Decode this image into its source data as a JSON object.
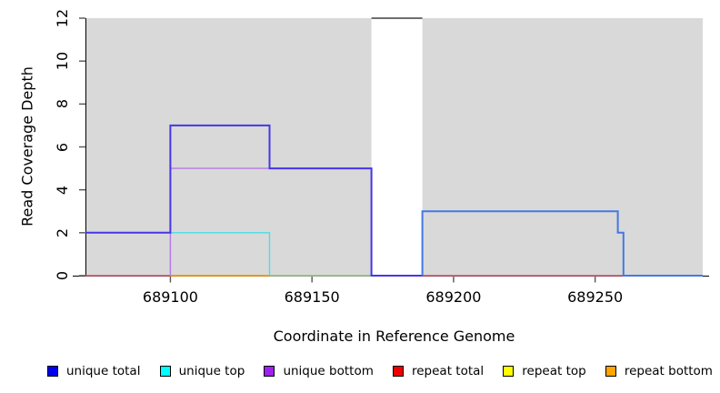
{
  "chart_data": {
    "type": "line",
    "subtype": "step-coverage",
    "title": "",
    "xlabel": "Coordinate in Reference Genome",
    "ylabel": "Read Coverage Depth",
    "xlim": [
      689070,
      689288
    ],
    "ylim": [
      0,
      12
    ],
    "xticks": [
      "689100",
      "689150",
      "689200",
      "689250"
    ],
    "xtick_values": [
      689100,
      689150,
      689200,
      689250
    ],
    "yticks": [
      "0",
      "2",
      "4",
      "6",
      "8",
      "10",
      "12"
    ],
    "ytick_values": [
      0,
      2,
      4,
      6,
      8,
      10,
      12
    ],
    "grid": "off",
    "plot_bg": "#d9d9d9",
    "gap_region": {
      "x0": 689171,
      "x1": 689189,
      "color": "#ffffff"
    },
    "series": [
      {
        "name": "repeat total",
        "color": "#d4576e",
        "lw": 1.4,
        "points": [
          [
            689070,
            0
          ],
          [
            689288,
            0
          ]
        ]
      },
      {
        "name": "repeat top overlap",
        "color": "#8fd694",
        "lw": 1.4,
        "points": [
          [
            689135,
            0
          ],
          [
            689171,
            0
          ]
        ]
      },
      {
        "name": "repeat bottom",
        "color": "#ffa500",
        "lw": 1.6,
        "points": [
          [
            689100,
            0
          ],
          [
            689135,
            0
          ]
        ]
      },
      {
        "name": "unique top",
        "color": "#45dfe8",
        "lw": 1.4,
        "points": [
          [
            689100,
            0
          ],
          [
            689100,
            2
          ],
          [
            689135,
            2
          ],
          [
            689135,
            0
          ]
        ]
      },
      {
        "name": "unique bottom",
        "color": "#b57be8",
        "lw": 1.4,
        "points": [
          [
            689100,
            0
          ],
          [
            689100,
            5
          ],
          [
            689171,
            5
          ],
          [
            689171,
            0
          ]
        ]
      },
      {
        "name": "unique total",
        "color": "#4636e9",
        "lw": 2,
        "points": [
          [
            689070,
            2
          ],
          [
            689100,
            2
          ],
          [
            689100,
            7
          ],
          [
            689135,
            7
          ],
          [
            689135,
            5
          ],
          [
            689171,
            5
          ],
          [
            689171,
            0
          ],
          [
            689189,
            0
          ]
        ]
      },
      {
        "name": "unique total right",
        "color": "#4478e3",
        "lw": 2,
        "points": [
          [
            689189,
            0
          ],
          [
            689189,
            3
          ],
          [
            689258,
            3
          ],
          [
            689258,
            2
          ],
          [
            689260,
            2
          ],
          [
            689260,
            0
          ],
          [
            689288,
            0
          ]
        ]
      },
      {
        "name": "gap top clip",
        "color": "#6e6e6e",
        "lw": 2,
        "points": [
          [
            689171,
            12
          ],
          [
            689189,
            12
          ]
        ]
      }
    ],
    "legend": [
      {
        "label": "unique total",
        "color": "#0000ee"
      },
      {
        "label": "unique top",
        "color": "#00ffff"
      },
      {
        "label": "unique bottom",
        "color": "#a020f0"
      },
      {
        "label": "repeat total",
        "color": "#ee0000"
      },
      {
        "label": "repeat top",
        "color": "#ffff00"
      },
      {
        "label": "repeat bottom",
        "color": "#ffa500"
      }
    ],
    "legend_position": "bottom"
  }
}
